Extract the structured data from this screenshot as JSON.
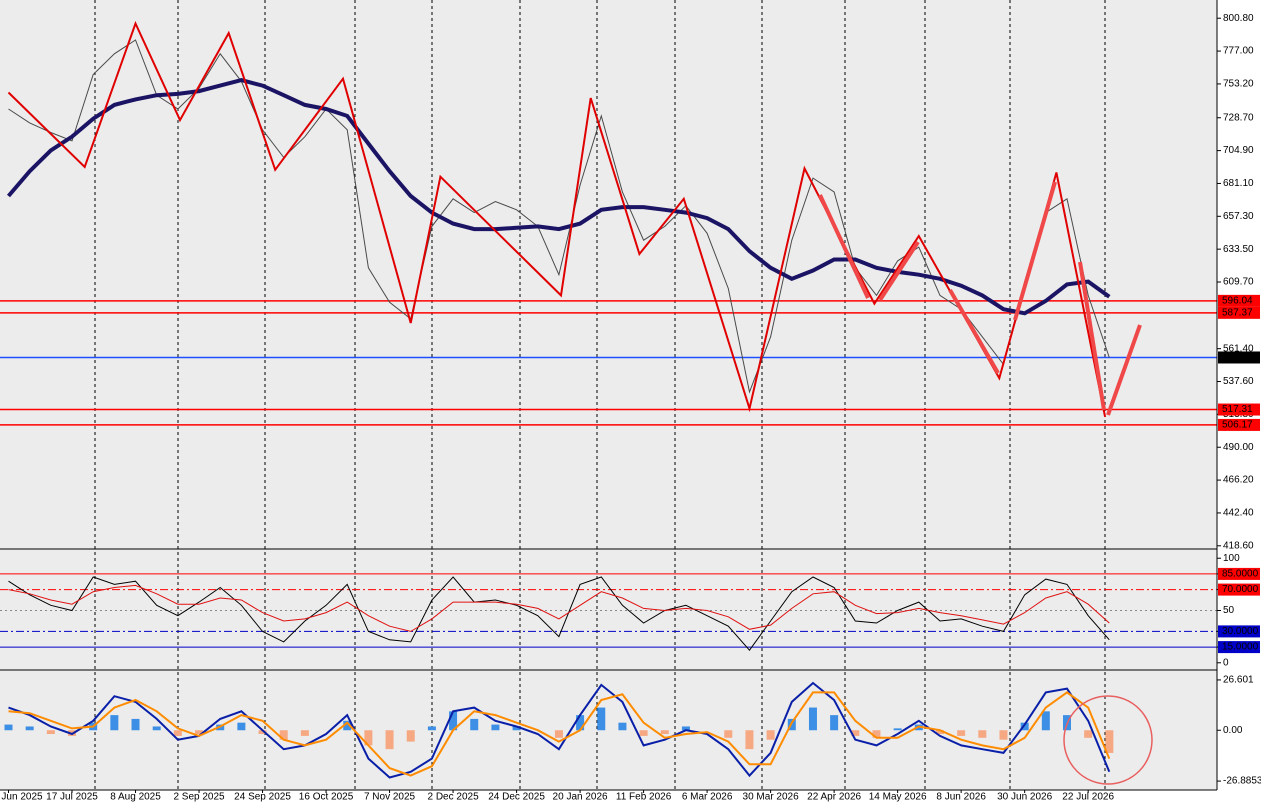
{
  "chart_data": [
    {
      "type": "line",
      "ylim": [
        417,
        814
      ],
      "yticks": [
        {
          "value": 800.8,
          "label": "800.80"
        },
        {
          "value": 777,
          "label": "777.00"
        },
        {
          "value": 753.2,
          "label": "753.20"
        },
        {
          "value": 728.7,
          "label": "728.70"
        },
        {
          "value": 704.9,
          "label": "704.90"
        },
        {
          "value": 681.1,
          "label": "681.10"
        },
        {
          "value": 657.3,
          "label": "657.30"
        },
        {
          "value": 633.5,
          "label": "633.50"
        },
        {
          "value": 609.7,
          "label": "609.70"
        },
        {
          "value": 561.4,
          "label": "561.40"
        },
        {
          "value": 537.6,
          "label": "537.60"
        },
        {
          "value": 513.8,
          "label": "513.80"
        },
        {
          "value": 490,
          "label": "490.00"
        },
        {
          "value": 466.2,
          "label": "466.20"
        },
        {
          "value": 442.4,
          "label": "442.40"
        },
        {
          "value": 418.6,
          "label": "418.60"
        }
      ],
      "xticks": [
        {
          "value": 0,
          "label": "Jun 2025"
        },
        {
          "value": 3,
          "label": "17 Jul 2025"
        },
        {
          "value": 6,
          "label": "8 Aug 2025"
        },
        {
          "value": 9,
          "label": "2 Sep 2025"
        },
        {
          "value": 12,
          "label": "24 Sep 2025"
        },
        {
          "value": 15,
          "label": "16 Oct 2025"
        },
        {
          "value": 18,
          "label": "7 Nov 2025"
        },
        {
          "value": 21,
          "label": "2 Dec 2025"
        },
        {
          "value": 24,
          "label": "24 Dec 2025"
        },
        {
          "value": 27,
          "label": "20 Jan 2026"
        },
        {
          "value": 30,
          "label": "11 Feb 2026"
        },
        {
          "value": 33,
          "label": "6 Mar 2026"
        },
        {
          "value": 36,
          "label": "30 Mar 2026"
        },
        {
          "value": 39,
          "label": "22 Apr 2026"
        },
        {
          "value": 42,
          "label": "14 May 2026"
        },
        {
          "value": 45,
          "label": "8 Jun 2026"
        },
        {
          "value": 48,
          "label": "30 Jun 2026"
        },
        {
          "value": 51,
          "label": "22 Jul 2026"
        }
      ],
      "levels": [
        {
          "value": 596.04,
          "color": "#ff0000"
        },
        {
          "value": 587.37,
          "color": "#ff0000"
        },
        {
          "value": 555.02,
          "color": "#1e50ff",
          "label_color": "#000000"
        },
        {
          "value": 517.31,
          "color": "#ff0000"
        },
        {
          "value": 506.17,
          "color": "#ff0000"
        }
      ],
      "series": [
        {
          "color": "#4a4a4a",
          "values": [
            735,
            725,
            718,
            712,
            760,
            775,
            785,
            745,
            735,
            750,
            775,
            755,
            720,
            700,
            715,
            735,
            720,
            620,
            595,
            583,
            650,
            670,
            660,
            668,
            662,
            650,
            615,
            680,
            730,
            675,
            640,
            650,
            665,
            645,
            605,
            530,
            570,
            640,
            685,
            675,
            620,
            600,
            625,
            635,
            600,
            590,
            570,
            550,
            610,
            660,
            670,
            600,
            555
          ]
        },
        {
          "color": "#1b1464",
          "values": [
            672,
            690,
            705,
            715,
            728,
            738,
            742,
            745,
            746,
            748,
            752,
            756,
            752,
            745,
            738,
            735,
            730,
            710,
            690,
            672,
            660,
            652,
            648,
            648,
            649,
            650,
            648,
            652,
            662,
            664,
            664,
            662,
            660,
            656,
            648,
            632,
            620,
            612,
            618,
            626,
            626,
            620,
            617,
            615,
            612,
            607,
            600,
            590,
            587,
            596,
            608,
            610,
            599
          ]
        }
      ],
      "zigzag": {
        "color": "#e00000",
        "x": [
          0,
          3.6,
          6,
          8.1,
          10.4,
          12.6,
          15.8,
          19,
          20.4,
          26.1,
          27.5,
          29.8,
          31.9,
          35,
          37.6,
          40.9,
          43,
          46.8,
          49.5,
          51.8
        ],
        "values": [
          747,
          693,
          797,
          727,
          790,
          691,
          757,
          580,
          686,
          600,
          743,
          630,
          670,
          518,
          692,
          594,
          643,
          540,
          689,
          512
        ]
      }
    },
    {
      "type": "line",
      "ylim": [
        -5,
        105
      ],
      "yticks": [
        100,
        {
          "value": 85,
          "label": "85.0000",
          "color": "#ff0000"
        },
        {
          "value": 70,
          "label": "70.0000",
          "color": "#ff0000",
          "style": "dashdot"
        },
        50,
        {
          "value": 30,
          "label": "30.0000",
          "color": "#0000c8",
          "style": "dashdot"
        },
        {
          "value": 15,
          "label": "15.0000",
          "color": "#0000c8"
        },
        0
      ],
      "series": [
        {
          "color": "#000000",
          "values": [
            78,
            65,
            55,
            50,
            82,
            75,
            78,
            55,
            45,
            58,
            72,
            55,
            30,
            20,
            40,
            55,
            75,
            30,
            22,
            20,
            60,
            82,
            58,
            60,
            55,
            45,
            25,
            75,
            82,
            55,
            38,
            50,
            55,
            45,
            35,
            12,
            40,
            68,
            82,
            72,
            40,
            38,
            50,
            58,
            40,
            42,
            35,
            30,
            65,
            80,
            75,
            45,
            22
          ]
        },
        {
          "color": "#e01010",
          "values": [
            70,
            66,
            60,
            56,
            68,
            72,
            74,
            66,
            56,
            56,
            62,
            60,
            48,
            40,
            42,
            48,
            58,
            45,
            35,
            30,
            42,
            58,
            58,
            58,
            56,
            52,
            42,
            55,
            68,
            62,
            52,
            50,
            52,
            50,
            44,
            32,
            36,
            52,
            66,
            68,
            55,
            47,
            48,
            52,
            48,
            45,
            41,
            37,
            48,
            62,
            68,
            56,
            38
          ]
        }
      ]
    },
    {
      "type": "line",
      "ylim": [
        -31.6,
        30.8
      ],
      "yticks": [
        26.601,
        {
          "value": 0,
          "label": "0.00"
        },
        -26.8853
      ],
      "series": [
        {
          "type": "bar",
          "positive_color": "#3d8fe6",
          "negative_color": "#f6a882",
          "values": [
            3,
            2,
            -2,
            -3,
            4,
            8,
            6,
            2,
            -3,
            -2,
            3,
            4,
            -2,
            -5,
            -3,
            0,
            5,
            -8,
            -10,
            -6,
            2,
            10,
            6,
            3,
            2,
            0,
            -4,
            8,
            12,
            4,
            -3,
            -2,
            2,
            0,
            -4,
            -10,
            -5,
            6,
            12,
            8,
            -3,
            -4,
            1,
            3,
            -2,
            -3,
            -4,
            -5,
            4,
            10,
            8,
            -4,
            -12
          ]
        },
        {
          "color": "#0a1fa8",
          "values": [
            12,
            8,
            2,
            -2,
            5,
            18,
            15,
            6,
            -5,
            -3,
            6,
            10,
            0,
            -10,
            -8,
            -2,
            8,
            -15,
            -25,
            -22,
            -15,
            10,
            12,
            5,
            2,
            -2,
            -10,
            8,
            24,
            15,
            -8,
            -5,
            0,
            -2,
            -10,
            -24,
            -12,
            15,
            25,
            16,
            -5,
            -8,
            -2,
            5,
            -3,
            -8,
            -10,
            -12,
            3,
            20,
            22,
            5,
            -22
          ]
        },
        {
          "color": "#ff8c00",
          "values": [
            10,
            9,
            5,
            1,
            2,
            12,
            16,
            10,
            1,
            -3,
            2,
            8,
            5,
            -5,
            -8,
            -5,
            4,
            -8,
            -20,
            -24,
            -19,
            0,
            10,
            8,
            4,
            0,
            -6,
            0,
            16,
            19,
            4,
            -4,
            -2,
            -1,
            -6,
            -18,
            -18,
            4,
            20,
            20,
            5,
            -4,
            -4,
            2,
            0,
            -5,
            -8,
            -10,
            -4,
            12,
            20,
            12,
            -15
          ]
        }
      ]
    }
  ]
}
